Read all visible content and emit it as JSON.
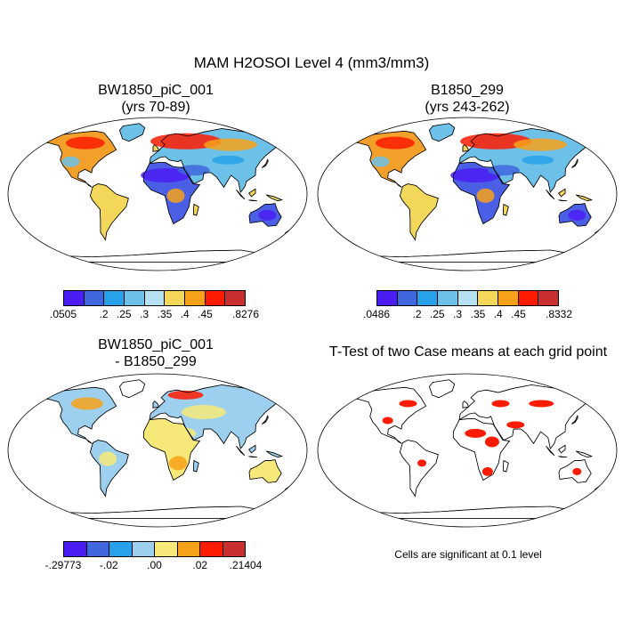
{
  "title": "MAM H2OSOI Level 4 (mm3/mm3)",
  "panels": [
    {
      "title_line1": "BW1850_piC_001",
      "title_line2": "(yrs 70-89)",
      "kind": "moisture"
    },
    {
      "title_line1": "B1850_299",
      "title_line2": "(yrs 243-262)",
      "kind": "moisture"
    },
    {
      "title_line1": "BW1850_piC_001",
      "title_line2": "- B1850_299",
      "kind": "diff"
    },
    {
      "title_line1": "T-Test of two Case means at each grid point",
      "title_line2": "",
      "kind": "ttest"
    }
  ],
  "colorbars": [
    {
      "colors": [
        "#4B1DF2",
        "#4067DD",
        "#27A2EA",
        "#6DC1E8",
        "#B6E1F0",
        "#F2D75B",
        "#F7A11A",
        "#FF1B00",
        "#C8302F"
      ],
      "labels": [
        ".0505",
        ".2",
        ".25",
        ".3",
        ".35",
        ".4",
        ".45",
        ".8276"
      ],
      "label_fracs": [
        0.0,
        0.222,
        0.333,
        0.444,
        0.556,
        0.667,
        0.778,
        1.0
      ]
    },
    {
      "colors": [
        "#4B1DF2",
        "#4067DD",
        "#27A2EA",
        "#6DC1E8",
        "#B6E1F0",
        "#F2D75B",
        "#F7A11A",
        "#FF1B00",
        "#C8302F"
      ],
      "labels": [
        ".0486",
        ".2",
        ".25",
        ".3",
        ".35",
        ".4",
        ".45",
        ".8332"
      ],
      "label_fracs": [
        0.0,
        0.222,
        0.333,
        0.444,
        0.556,
        0.667,
        0.778,
        1.0
      ]
    },
    {
      "colors": [
        "#4B1DF2",
        "#4067DD",
        "#27A2EA",
        "#9DD0EE",
        "#F7E979",
        "#F7A11A",
        "#FF1B00",
        "#C8302F"
      ],
      "labels": [
        "-.29773",
        "-.02",
        ".00",
        ".02",
        ".21404"
      ],
      "label_fracs": [
        0.0,
        0.25,
        0.5,
        0.75,
        1.0
      ]
    }
  ],
  "significance_note": "Cells are significant at 0.1 level"
}
